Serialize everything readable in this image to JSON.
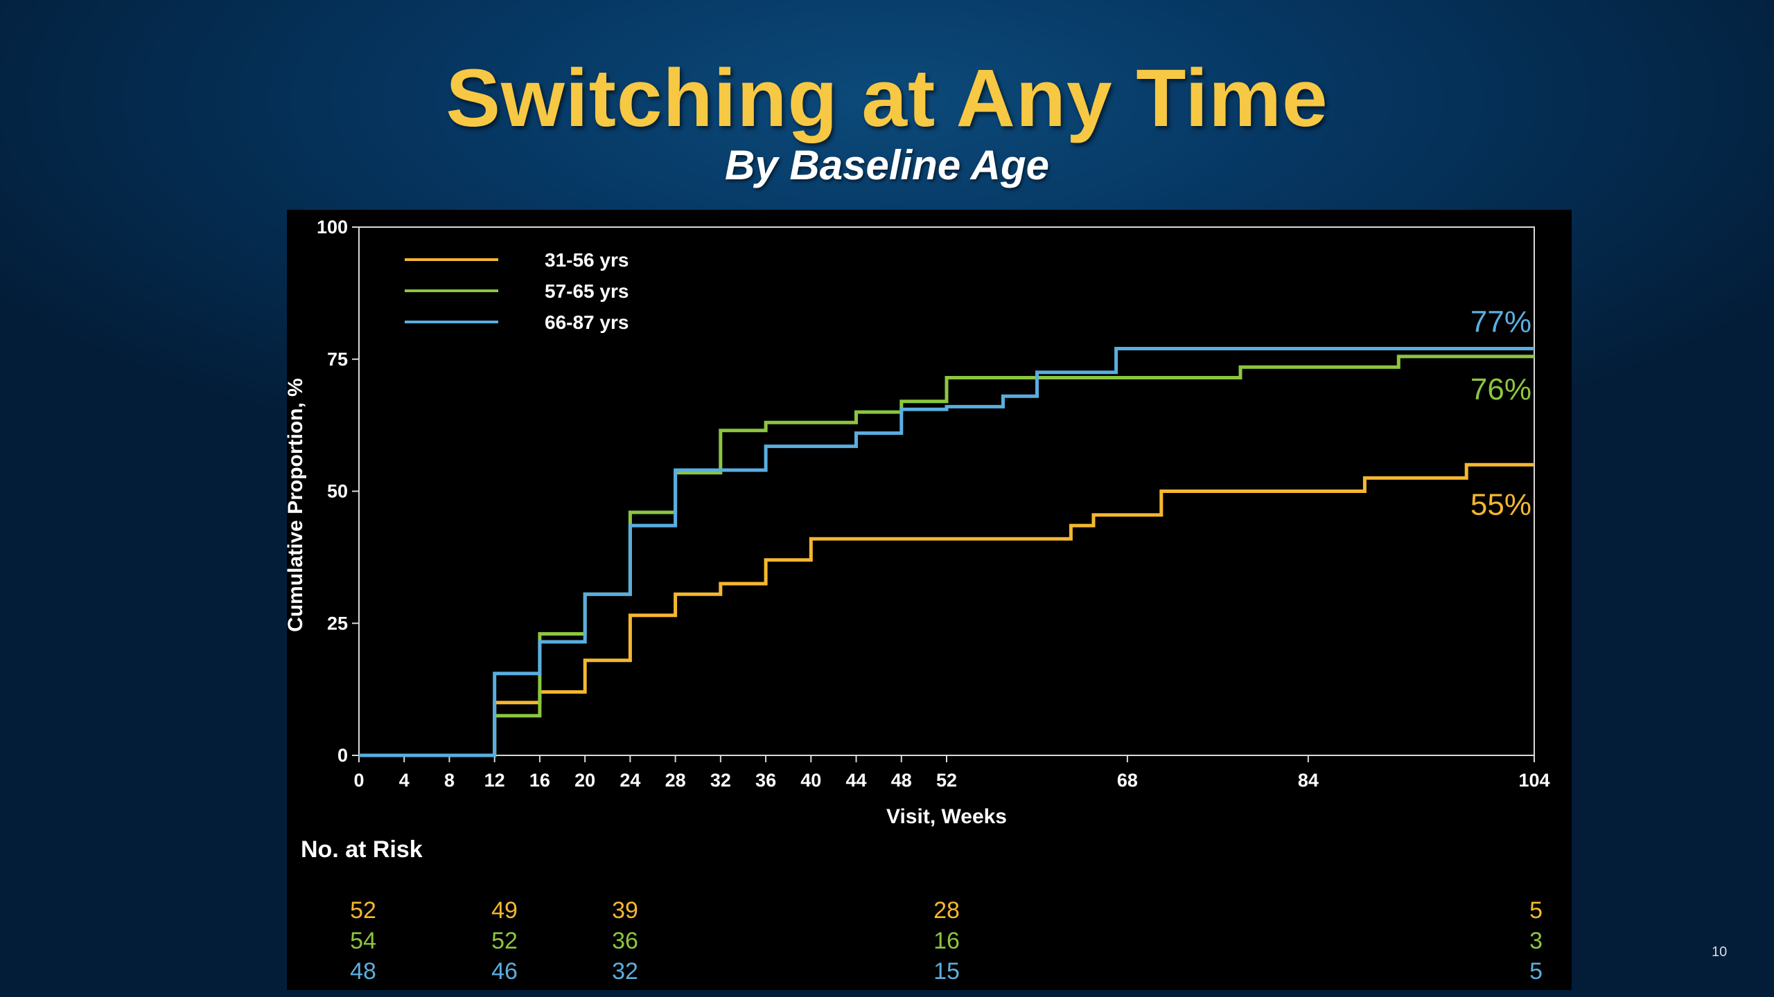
{
  "slide": {
    "title": "Switching at Any Time",
    "subtitle": "By Baseline Age",
    "slide_number": "10"
  },
  "colors": {
    "title": "#f7c843",
    "series_31_56": "#f5b730",
    "series_57_65": "#8cc63f",
    "series_66_87": "#5aaee0",
    "background": "#04284a",
    "panel": "#000000"
  },
  "chart_data": {
    "type": "line",
    "step": true,
    "xlabel": "Visit, Weeks",
    "ylabel": "Cumulative Proportion, %",
    "xlim": [
      0,
      104
    ],
    "ylim": [
      0,
      100
    ],
    "xticks": [
      0,
      4,
      8,
      12,
      16,
      20,
      24,
      28,
      32,
      36,
      40,
      44,
      48,
      52,
      68,
      84,
      104
    ],
    "yticks": [
      0,
      25,
      50,
      75,
      100
    ],
    "legend_position": "top-left",
    "series": [
      {
        "name": "31-56 yrs",
        "color": "#f5b730",
        "end_label": "55%",
        "points": [
          [
            0,
            0
          ],
          [
            12,
            0
          ],
          [
            12,
            10
          ],
          [
            16,
            10
          ],
          [
            16,
            12
          ],
          [
            20,
            12
          ],
          [
            20,
            18
          ],
          [
            24,
            18
          ],
          [
            24,
            26.5
          ],
          [
            28,
            26.5
          ],
          [
            28,
            30.5
          ],
          [
            32,
            30.5
          ],
          [
            32,
            32.5
          ],
          [
            36,
            32.5
          ],
          [
            36,
            37
          ],
          [
            40,
            37
          ],
          [
            40,
            41
          ],
          [
            63,
            41
          ],
          [
            63,
            43.5
          ],
          [
            65,
            43.5
          ],
          [
            65,
            45.5
          ],
          [
            71,
            45.5
          ],
          [
            71,
            50
          ],
          [
            89,
            50
          ],
          [
            89,
            52.5
          ],
          [
            98,
            52.5
          ],
          [
            98,
            55
          ],
          [
            104,
            55
          ]
        ]
      },
      {
        "name": "57-65 yrs",
        "color": "#8cc63f",
        "end_label": "76%",
        "points": [
          [
            0,
            0
          ],
          [
            12,
            0
          ],
          [
            12,
            7.5
          ],
          [
            16,
            7.5
          ],
          [
            16,
            23
          ],
          [
            20,
            23
          ],
          [
            20,
            30.5
          ],
          [
            24,
            30.5
          ],
          [
            24,
            46
          ],
          [
            28,
            46
          ],
          [
            28,
            53.5
          ],
          [
            32,
            53.5
          ],
          [
            32,
            61.5
          ],
          [
            36,
            61.5
          ],
          [
            36,
            63
          ],
          [
            44,
            63
          ],
          [
            44,
            65
          ],
          [
            48,
            65
          ],
          [
            48,
            67
          ],
          [
            52,
            67
          ],
          [
            52,
            71.5
          ],
          [
            60,
            71.5
          ],
          [
            60,
            71.5
          ],
          [
            78,
            71.5
          ],
          [
            78,
            73.5
          ],
          [
            92,
            73.5
          ],
          [
            92,
            75.5
          ],
          [
            104,
            75.5
          ]
        ]
      },
      {
        "name": "66-87 yrs",
        "color": "#5aaee0",
        "end_label": "77%",
        "points": [
          [
            0,
            0
          ],
          [
            12,
            0
          ],
          [
            12,
            15.5
          ],
          [
            16,
            15.5
          ],
          [
            16,
            21.5
          ],
          [
            20,
            21.5
          ],
          [
            20,
            30.5
          ],
          [
            24,
            30.5
          ],
          [
            24,
            43.5
          ],
          [
            28,
            43.5
          ],
          [
            28,
            54
          ],
          [
            36,
            54
          ],
          [
            36,
            58.5
          ],
          [
            44,
            58.5
          ],
          [
            44,
            61
          ],
          [
            48,
            61
          ],
          [
            48,
            65.5
          ],
          [
            52,
            65.5
          ],
          [
            52,
            66
          ],
          [
            57,
            66
          ],
          [
            57,
            68
          ],
          [
            60,
            68
          ],
          [
            60,
            70.5
          ],
          [
            60,
            72.5
          ],
          [
            67,
            72.5
          ],
          [
            67,
            77
          ],
          [
            104,
            77
          ]
        ]
      }
    ],
    "at_risk": {
      "label": "No. at Risk",
      "weeks": [
        0,
        12,
        24,
        52,
        104
      ],
      "rows": [
        {
          "series": "31-56 yrs",
          "values": [
            "52",
            "49",
            "39",
            "28",
            "5"
          ]
        },
        {
          "series": "57-65 yrs",
          "values": [
            "54",
            "52",
            "36",
            "16",
            "3"
          ]
        },
        {
          "series": "66-87 yrs",
          "values": [
            "48",
            "46",
            "32",
            "15",
            "5"
          ]
        }
      ]
    }
  }
}
